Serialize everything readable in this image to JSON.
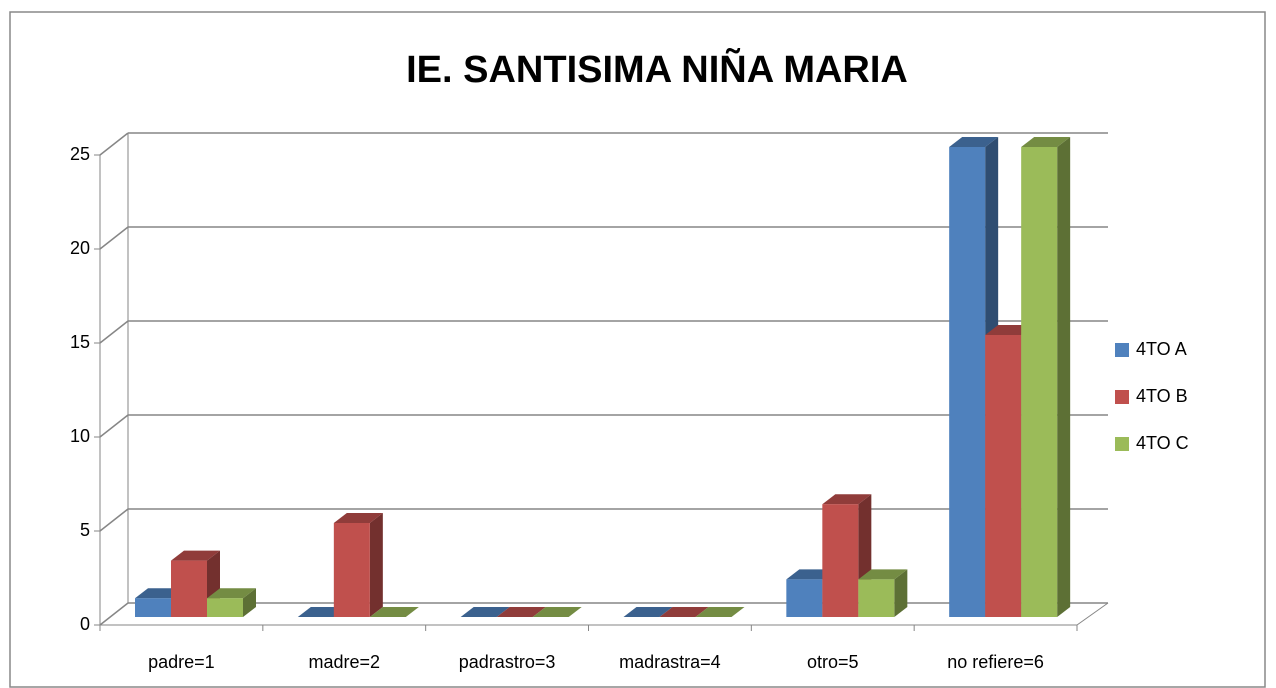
{
  "chart_data": {
    "type": "bar3d",
    "title": "IE. SANTISIMA NIÑA MARIA",
    "categories": [
      "padre=1",
      "madre=2",
      "padrastro=3",
      "madrastra=4",
      "otro=5",
      "no refiere=6"
    ],
    "series": [
      {
        "name": "4TO A",
        "color": "#4f81bd",
        "values": [
          1,
          0,
          0,
          0,
          2,
          25
        ]
      },
      {
        "name": "4TO B",
        "color": "#c0504d",
        "values": [
          3,
          5,
          0,
          0,
          6,
          15
        ]
      },
      {
        "name": "4TO C",
        "color": "#9bbb59",
        "values": [
          1,
          0,
          0,
          0,
          2,
          25
        ]
      }
    ],
    "ylim": [
      0,
      25
    ],
    "yticks": [
      0,
      5,
      10,
      15,
      20,
      25
    ],
    "grid": true,
    "legend": "right"
  }
}
